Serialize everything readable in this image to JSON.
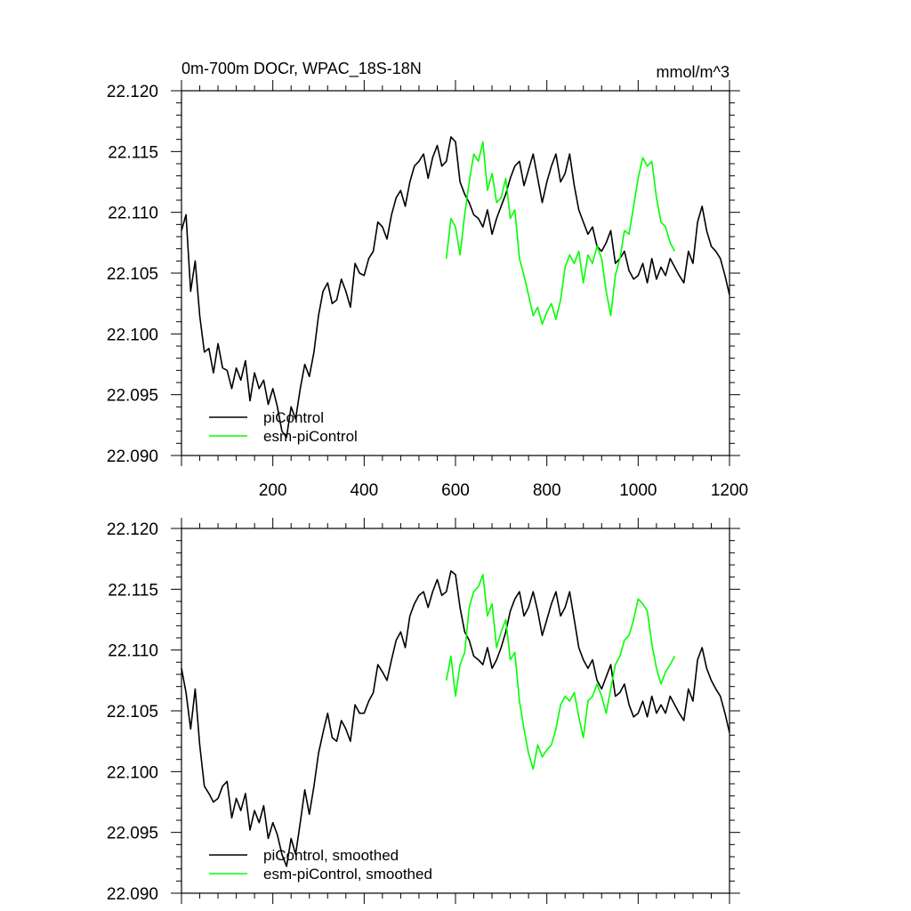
{
  "colors": {
    "background": "#ffffff",
    "axes": "#000000",
    "piControl": "#000000",
    "esm_piControl": "#00ff00"
  },
  "chart_data": [
    {
      "type": "line",
      "title_left": "0m-700m DOCr, WPAC_18S-18N",
      "title_right": "mmol/m^3",
      "xlim": [
        0,
        1200
      ],
      "ylim": [
        22.09,
        22.12
      ],
      "xticks": [
        200,
        400,
        600,
        800,
        1000,
        1200
      ],
      "xtick_labels": [
        "200",
        "400",
        "600",
        "800",
        "1000",
        "1200"
      ],
      "yticks": [
        22.09,
        22.095,
        22.1,
        22.105,
        22.11,
        22.115,
        22.12
      ],
      "ytick_labels": [
        "22.090",
        "22.095",
        "22.100",
        "22.105",
        "22.110",
        "22.115",
        "22.120"
      ],
      "legend": [
        "piControl",
        "esm-piControl"
      ],
      "legend_position": "bottom-left",
      "series": [
        {
          "name": "piControl",
          "color": "#000000",
          "x": [
            0,
            10,
            20,
            30,
            40,
            50,
            60,
            70,
            80,
            90,
            100,
            110,
            120,
            130,
            140,
            150,
            160,
            170,
            180,
            190,
            200,
            210,
            220,
            230,
            240,
            250,
            260,
            270,
            280,
            290,
            300,
            310,
            320,
            330,
            340,
            350,
            360,
            370,
            380,
            390,
            400,
            410,
            420,
            430,
            440,
            450,
            460,
            470,
            480,
            490,
            500,
            510,
            520,
            530,
            540,
            550,
            560,
            570,
            580,
            590,
            600,
            610,
            620,
            630,
            640,
            650,
            660,
            670,
            680,
            690,
            700,
            710,
            720,
            730,
            740,
            750,
            760,
            770,
            780,
            790,
            800,
            810,
            820,
            830,
            840,
            850,
            860,
            870,
            880,
            890,
            900,
            910,
            920,
            930,
            940,
            950,
            960,
            970,
            980,
            990,
            1000,
            1010,
            1020,
            1030,
            1040,
            1050,
            1060,
            1070,
            1080,
            1090,
            1100,
            1110,
            1120,
            1130,
            1140,
            1150,
            1160,
            1170,
            1180,
            1190,
            1200
          ],
          "y": [
            22.1085,
            22.1098,
            22.1035,
            22.106,
            22.1015,
            22.0985,
            22.0988,
            22.0968,
            22.0992,
            22.0972,
            22.097,
            22.0955,
            22.0972,
            22.0962,
            22.0978,
            22.0945,
            22.0968,
            22.0955,
            22.0962,
            22.0942,
            22.0955,
            22.094,
            22.092,
            22.0915,
            22.094,
            22.093,
            22.0955,
            22.0975,
            22.0965,
            22.0985,
            22.1015,
            22.1035,
            22.1042,
            22.1025,
            22.1028,
            22.1045,
            22.1035,
            22.1022,
            22.1058,
            22.105,
            22.1048,
            22.1062,
            22.1068,
            22.1092,
            22.1088,
            22.1078,
            22.1098,
            22.1112,
            22.1118,
            22.1105,
            22.1125,
            22.1138,
            22.1142,
            22.1148,
            22.1128,
            22.1145,
            22.1155,
            22.1138,
            22.1142,
            22.1162,
            22.1158,
            22.1125,
            22.1115,
            22.1108,
            22.1098,
            22.1095,
            22.1088,
            22.1102,
            22.1082,
            22.1095,
            22.1105,
            22.1115,
            22.1128,
            22.1138,
            22.1142,
            22.1122,
            22.1135,
            22.1148,
            22.1128,
            22.1108,
            22.1125,
            22.1138,
            22.1148,
            22.1125,
            22.1132,
            22.1148,
            22.1122,
            22.1102,
            22.1092,
            22.1082,
            22.1088,
            22.1072,
            22.1068,
            22.1075,
            22.1085,
            22.1058,
            22.1062,
            22.1068,
            22.1052,
            22.1045,
            22.1048,
            22.1058,
            22.1042,
            22.1062,
            22.1045,
            22.1055,
            22.1048,
            22.1062,
            22.1055,
            22.1048,
            22.1042,
            22.1068,
            22.1058,
            22.1092,
            22.1105,
            22.1085,
            22.1072,
            22.1068,
            22.1062,
            22.1048,
            22.1032
          ]
        },
        {
          "name": "esm-piControl",
          "color": "#00ff00",
          "x": [
            580,
            590,
            600,
            610,
            620,
            630,
            640,
            650,
            660,
            670,
            680,
            690,
            700,
            710,
            720,
            730,
            740,
            750,
            760,
            770,
            780,
            790,
            800,
            810,
            820,
            830,
            840,
            850,
            860,
            870,
            880,
            890,
            900,
            910,
            920,
            930,
            940,
            950,
            960,
            970,
            980,
            990,
            1000,
            1010,
            1020,
            1030,
            1040,
            1050,
            1060,
            1070,
            1080
          ],
          "y": [
            22.1062,
            22.1095,
            22.1088,
            22.1065,
            22.1098,
            22.1125,
            22.1148,
            22.1142,
            22.1158,
            22.1118,
            22.1132,
            22.1108,
            22.1112,
            22.1128,
            22.1095,
            22.1102,
            22.1062,
            22.1048,
            22.1032,
            22.1015,
            22.1022,
            22.1008,
            22.1018,
            22.1025,
            22.1012,
            22.1028,
            22.1055,
            22.1065,
            22.1058,
            22.1068,
            22.1042,
            22.1065,
            22.1058,
            22.1072,
            22.1062,
            22.1035,
            22.1015,
            22.1048,
            22.1062,
            22.1085,
            22.1082,
            22.1105,
            22.1128,
            22.1145,
            22.1138,
            22.1142,
            22.1112,
            22.1092,
            22.1088,
            22.1075,
            22.1068
          ]
        }
      ]
    },
    {
      "type": "line",
      "xlim": [
        0,
        1200
      ],
      "ylim": [
        22.09,
        22.12
      ],
      "yticks": [
        22.09,
        22.095,
        22.1,
        22.105,
        22.11,
        22.115,
        22.12
      ],
      "ytick_labels": [
        "22.090",
        "22.095",
        "22.100",
        "22.105",
        "22.110",
        "22.115",
        "22.120"
      ],
      "legend": [
        "piControl, smoothed",
        "esm-piControl, smoothed"
      ],
      "legend_position": "bottom-left",
      "series": [
        {
          "name": "piControl, smoothed",
          "color": "#000000",
          "x": [
            0,
            10,
            20,
            30,
            40,
            50,
            60,
            70,
            80,
            90,
            100,
            110,
            120,
            130,
            140,
            150,
            160,
            170,
            180,
            190,
            200,
            210,
            220,
            230,
            240,
            250,
            260,
            270,
            280,
            290,
            300,
            310,
            320,
            330,
            340,
            350,
            360,
            370,
            380,
            390,
            400,
            410,
            420,
            430,
            440,
            450,
            460,
            470,
            480,
            490,
            500,
            510,
            520,
            530,
            540,
            550,
            560,
            570,
            580,
            590,
            600,
            610,
            620,
            630,
            640,
            650,
            660,
            670,
            680,
            690,
            700,
            710,
            720,
            730,
            740,
            750,
            760,
            770,
            780,
            790,
            800,
            810,
            820,
            830,
            840,
            850,
            860,
            870,
            880,
            890,
            900,
            910,
            920,
            930,
            940,
            950,
            960,
            970,
            980,
            990,
            1000,
            1010,
            1020,
            1030,
            1040,
            1050,
            1060,
            1070,
            1080,
            1090,
            1100,
            1110,
            1120,
            1130,
            1140,
            1150,
            1160,
            1170,
            1180,
            1190,
            1200
          ],
          "y": [
            22.1085,
            22.1065,
            22.1035,
            22.1068,
            22.1022,
            22.0988,
            22.0982,
            22.0975,
            22.0978,
            22.0988,
            22.0992,
            22.0962,
            22.0978,
            22.0968,
            22.0982,
            22.0952,
            22.0968,
            22.0958,
            22.0972,
            22.0945,
            22.0958,
            22.0948,
            22.0932,
            22.0922,
            22.0945,
            22.0932,
            22.0958,
            22.0985,
            22.0965,
            22.0988,
            22.1015,
            22.1032,
            22.1048,
            22.1028,
            22.1025,
            22.1042,
            22.1035,
            22.1025,
            22.1055,
            22.1048,
            22.1048,
            22.1058,
            22.1065,
            22.1088,
            22.1082,
            22.1075,
            22.1092,
            22.1108,
            22.1115,
            22.1102,
            22.1128,
            22.1138,
            22.1145,
            22.1148,
            22.1135,
            22.1148,
            22.1158,
            22.1145,
            22.1148,
            22.1165,
            22.1162,
            22.1135,
            22.1115,
            22.1108,
            22.1095,
            22.1092,
            22.1088,
            22.1102,
            22.1085,
            22.1092,
            22.1102,
            22.1115,
            22.1132,
            22.1142,
            22.1148,
            22.1128,
            22.1135,
            22.1148,
            22.1132,
            22.1112,
            22.1125,
            22.1138,
            22.1148,
            22.1128,
            22.1135,
            22.1148,
            22.1125,
            22.1102,
            22.1092,
            22.1085,
            22.1092,
            22.1075,
            22.1068,
            22.1078,
            22.1088,
            22.1062,
            22.1065,
            22.1072,
            22.1055,
            22.1045,
            22.1048,
            22.1058,
            22.1045,
            22.1062,
            22.1048,
            22.1055,
            22.1048,
            22.1062,
            22.1055,
            22.1048,
            22.1042,
            22.1068,
            22.1058,
            22.1092,
            22.1102,
            22.1085,
            22.1075,
            22.1068,
            22.1062,
            22.1048,
            22.1032
          ]
        },
        {
          "name": "esm-piControl, smoothed",
          "color": "#00ff00",
          "x": [
            580,
            590,
            600,
            610,
            620,
            630,
            640,
            650,
            660,
            670,
            680,
            690,
            700,
            710,
            720,
            730,
            740,
            750,
            760,
            770,
            780,
            790,
            800,
            810,
            820,
            830,
            840,
            850,
            860,
            870,
            880,
            890,
            900,
            910,
            920,
            930,
            940,
            950,
            960,
            970,
            980,
            990,
            1000,
            1010,
            1020,
            1030,
            1040,
            1050,
            1060,
            1070,
            1080
          ],
          "y": [
            22.1075,
            22.1095,
            22.1062,
            22.1088,
            22.1098,
            22.1135,
            22.1148,
            22.1152,
            22.1162,
            22.1128,
            22.1138,
            22.1102,
            22.1115,
            22.1125,
            22.1092,
            22.1098,
            22.1058,
            22.1035,
            22.1015,
            22.1002,
            22.1022,
            22.1012,
            22.1018,
            22.1022,
            22.1035,
            22.1055,
            22.1062,
            22.1058,
            22.1065,
            22.1045,
            22.1028,
            22.1058,
            22.1062,
            22.1072,
            22.1062,
            22.1048,
            22.1068,
            22.1088,
            22.1095,
            22.1108,
            22.1112,
            22.1125,
            22.1142,
            22.1138,
            22.1132,
            22.1105,
            22.1085,
            22.1072,
            22.1082,
            22.1088,
            22.1095
          ]
        }
      ]
    }
  ]
}
